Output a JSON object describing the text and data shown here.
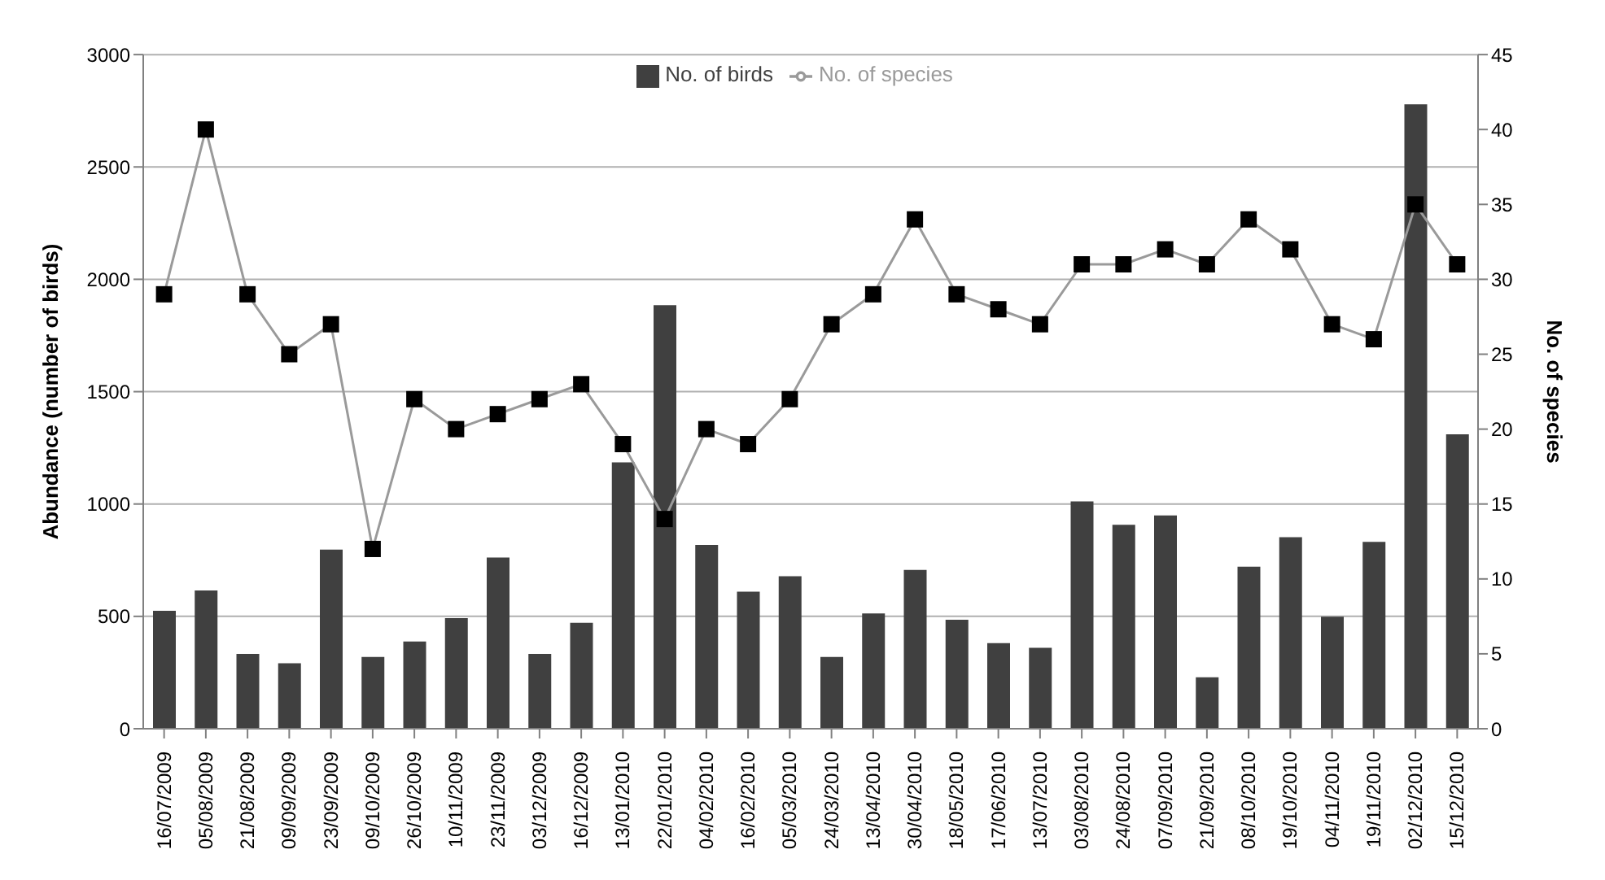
{
  "chart_data": {
    "type": "bar",
    "categories": [
      "16/07/2009",
      "05/08/2009",
      "21/08/2009",
      "09/09/2009",
      "23/09/2009",
      "09/10/2009",
      "26/10/2009",
      "10/11/2009",
      "23/11/2009",
      "03/12/2009",
      "16/12/2009",
      "13/01/2010",
      "22/01/2010",
      "04/02/2010",
      "16/02/2010",
      "05/03/2010",
      "24/03/2010",
      "13/04/2010",
      "30/04/2010",
      "18/05/2010",
      "17/06/2010",
      "13/07/2010",
      "03/08/2010",
      "24/08/2010",
      "07/09/2010",
      "21/09/2010",
      "08/10/2010",
      "19/10/2010",
      "04/11/2010",
      "19/11/2010",
      "02/12/2010",
      "15/12/2010"
    ],
    "series": [
      {
        "name": "No. of birds",
        "color": "#404040",
        "values": [
          525,
          615,
          333,
          291,
          797,
          319,
          388,
          492,
          762,
          333,
          471,
          1185,
          1885,
          818,
          610,
          679,
          319,
          513,
          707,
          485,
          381,
          360,
          1012,
          908,
          949,
          229,
          721,
          852,
          499,
          832,
          2779,
          1310
        ]
      },
      {
        "name": "No. of species",
        "type": "line",
        "axis": "y2",
        "color": "#9a9a9a",
        "marker": "square",
        "values": [
          29,
          40,
          29,
          25,
          27,
          12,
          22,
          20,
          21,
          22,
          23,
          19,
          14,
          20,
          19,
          22,
          27,
          29,
          34,
          29,
          28,
          27,
          31,
          31,
          32,
          31,
          34,
          32,
          27,
          26,
          35,
          31
        ]
      }
    ],
    "ylabel": "Abundance (number of birds)",
    "y2label": "No. of species",
    "ylim": [
      0,
      3000
    ],
    "yticks": [
      0,
      500,
      1000,
      1500,
      2000,
      2500,
      3000
    ],
    "y2lim": [
      0,
      45
    ],
    "y2ticks": [
      0,
      5,
      10,
      15,
      20,
      25,
      30,
      35,
      40,
      45
    ],
    "grid": "y",
    "legend": "top"
  }
}
